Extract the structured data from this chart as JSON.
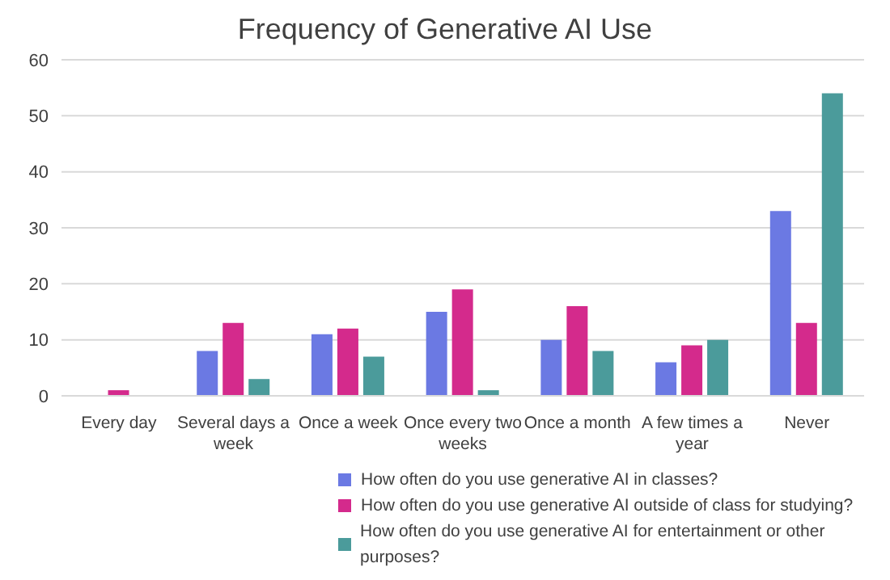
{
  "chart_data": {
    "type": "bar",
    "title": "Frequency of Generative AI Use",
    "categories": [
      "Every day",
      "Several days a week",
      "Once a week",
      "Once every two weeks",
      "Once a month",
      "A few times a year",
      "Never"
    ],
    "series": [
      {
        "name": "How often do you use generative AI in classes?",
        "color": "#6b79e3",
        "values": [
          0,
          8,
          11,
          15,
          10,
          6,
          33
        ]
      },
      {
        "name": "How often do you use generative AI outside of class for studying?",
        "color": "#d42a8c",
        "values": [
          1,
          13,
          12,
          19,
          16,
          9,
          13
        ]
      },
      {
        "name": "How often do you use generative AI for entertainment or other purposes?",
        "color": "#4b9b9b",
        "values": [
          0,
          3,
          7,
          1,
          8,
          10,
          54
        ]
      }
    ],
    "ylim": [
      0,
      60
    ],
    "yticks": [
      0,
      10,
      20,
      30,
      40,
      50,
      60
    ],
    "grid": "y",
    "legend": "bottom"
  }
}
